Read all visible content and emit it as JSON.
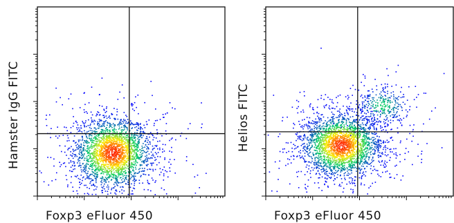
{
  "chart_data": [
    {
      "type": "scatter",
      "style": "flow-cytometry density plot",
      "xlabel": "Foxp3 eFluor 450",
      "ylabel": "Hamster IgG FITC",
      "x_scale": "log",
      "y_scale": "log",
      "xlim": [
        0,
        1
      ],
      "ylim": [
        0,
        1
      ],
      "quadrant_gate": {
        "x": 0.49,
        "y": 0.33
      },
      "population": {
        "center": [
          0.4,
          0.23
        ],
        "spread": [
          0.1,
          0.09
        ]
      },
      "grid": false
    },
    {
      "type": "scatter",
      "style": "flow-cytometry density plot",
      "xlabel": "Foxp3 eFluor 450",
      "ylabel": "Helios FITC",
      "x_scale": "log",
      "y_scale": "log",
      "xlim": [
        0,
        1
      ],
      "ylim": [
        0,
        1
      ],
      "quadrant_gate": {
        "x": 0.49,
        "y": 0.34
      },
      "population": {
        "center": [
          0.4,
          0.27
        ],
        "spread": [
          0.1,
          0.08
        ]
      },
      "secondary_population": {
        "center": [
          0.62,
          0.48
        ],
        "spread": [
          0.07,
          0.05
        ]
      },
      "grid": false
    }
  ],
  "colors": {
    "density_low": "#0000ff",
    "density_mid": "#00cc66",
    "density_high": "#ffee00",
    "density_peak": "#ff2200",
    "axis": "#111111"
  }
}
